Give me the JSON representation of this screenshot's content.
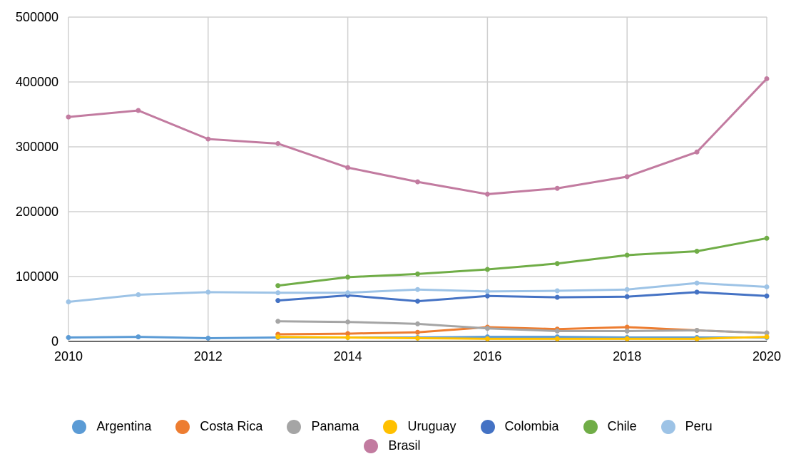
{
  "chart_data": {
    "type": "line",
    "x": [
      2010,
      2011,
      2012,
      2013,
      2014,
      2015,
      2016,
      2017,
      2018,
      2019,
      2020
    ],
    "xlim": [
      2010,
      2020
    ],
    "xticks": [
      2010,
      2012,
      2014,
      2016,
      2018,
      2020
    ],
    "ylim": [
      0,
      500000
    ],
    "yticks": [
      0,
      100000,
      200000,
      300000,
      400000,
      500000
    ],
    "grid": true,
    "legend": "bottom",
    "series": [
      {
        "name": "Argentina",
        "color": "#5b9bd5",
        "values": [
          6000,
          7000,
          5000,
          6000,
          6000,
          6000,
          7000,
          7000,
          6000,
          6000,
          6000
        ]
      },
      {
        "name": "Costa Rica",
        "color": "#ed7d31",
        "values": [
          null,
          null,
          null,
          11000,
          12000,
          14000,
          22000,
          19000,
          22000,
          17000,
          13000
        ]
      },
      {
        "name": "Panama",
        "color": "#a5a5a5",
        "values": [
          null,
          null,
          null,
          31000,
          30000,
          27000,
          20000,
          16000,
          16000,
          17000,
          13000
        ]
      },
      {
        "name": "Uruguay",
        "color": "#ffc000",
        "values": [
          null,
          null,
          null,
          7000,
          6000,
          5000,
          4000,
          4000,
          4000,
          4000,
          7000
        ]
      },
      {
        "name": "Colombia",
        "color": "#4472c4",
        "values": [
          null,
          null,
          null,
          63000,
          71000,
          62000,
          70000,
          68000,
          69000,
          76000,
          70000
        ]
      },
      {
        "name": "Chile",
        "color": "#70ad47",
        "values": [
          null,
          null,
          null,
          86000,
          99000,
          104000,
          111000,
          120000,
          133000,
          139000,
          159000
        ]
      },
      {
        "name": "Peru",
        "color": "#9dc3e6",
        "values": [
          61000,
          72000,
          76000,
          75000,
          75000,
          80000,
          77000,
          78000,
          80000,
          90000,
          84000
        ]
      },
      {
        "name": "Brasil",
        "color": "#c27ba0",
        "values": [
          346000,
          356000,
          312000,
          305000,
          268000,
          246000,
          227000,
          236000,
          254000,
          292000,
          405000
        ]
      }
    ]
  }
}
